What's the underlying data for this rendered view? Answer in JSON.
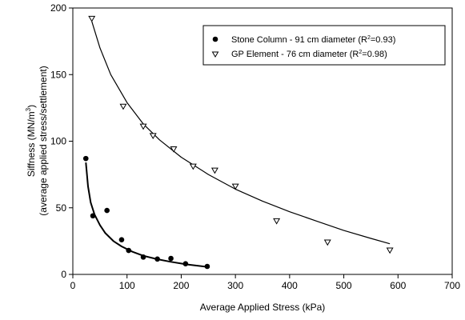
{
  "chart_data": {
    "type": "scatter",
    "xlabel": "Average Applied Stress (kPa)",
    "ylabel_line1_prefix": "Siffness (MN/m",
    "ylabel_line1_sup": "3",
    "ylabel_line1_suffix": ")",
    "ylabel_line2": "(average applied stress/settlement)",
    "xlim": [
      0,
      700
    ],
    "ylim": [
      0,
      200
    ],
    "xticks": [
      0,
      100,
      200,
      300,
      400,
      500,
      600,
      700
    ],
    "yticks": [
      0,
      50,
      100,
      150,
      200
    ],
    "xtick_labels": [
      "0",
      "100",
      "200",
      "300",
      "400",
      "500",
      "600",
      "700"
    ],
    "ytick_labels": [
      "0",
      "50",
      "100",
      "150",
      "200"
    ],
    "grid": false,
    "legend_position": "top-right",
    "series": [
      {
        "name": "Stone Column - 91 cm diameter",
        "r2_prefix": "(R",
        "r2_sup": "2",
        "r2_suffix": "=0.93)",
        "marker": "filled-circle",
        "color": "#000000",
        "points": [
          {
            "x": 24,
            "y": 87
          },
          {
            "x": 37,
            "y": 44
          },
          {
            "x": 63,
            "y": 48
          },
          {
            "x": 90,
            "y": 26
          },
          {
            "x": 103,
            "y": 18
          },
          {
            "x": 130,
            "y": 13
          },
          {
            "x": 156,
            "y": 11.5
          },
          {
            "x": 181,
            "y": 12
          },
          {
            "x": 208,
            "y": 8
          },
          {
            "x": 248,
            "y": 6
          }
        ],
        "fit": [
          {
            "x": 24,
            "y": 84
          },
          {
            "x": 28,
            "y": 66
          },
          {
            "x": 33,
            "y": 54
          },
          {
            "x": 40,
            "y": 45
          },
          {
            "x": 50,
            "y": 37
          },
          {
            "x": 60,
            "y": 31
          },
          {
            "x": 75,
            "y": 25
          },
          {
            "x": 90,
            "y": 21
          },
          {
            "x": 110,
            "y": 17
          },
          {
            "x": 130,
            "y": 14
          },
          {
            "x": 155,
            "y": 11.5
          },
          {
            "x": 180,
            "y": 9.5
          },
          {
            "x": 210,
            "y": 7.5
          },
          {
            "x": 250,
            "y": 5.5
          }
        ]
      },
      {
        "name": "GP Element - 76 cm diameter",
        "r2_prefix": "(R",
        "r2_sup": "2",
        "r2_suffix": "=0.98)",
        "marker": "open-triangle-down",
        "color": "#000000",
        "points": [
          {
            "x": 35,
            "y": 192
          },
          {
            "x": 93,
            "y": 126
          },
          {
            "x": 130,
            "y": 111
          },
          {
            "x": 148,
            "y": 104
          },
          {
            "x": 186,
            "y": 94
          },
          {
            "x": 222,
            "y": 81
          },
          {
            "x": 262,
            "y": 78
          },
          {
            "x": 300,
            "y": 66
          },
          {
            "x": 376,
            "y": 40
          },
          {
            "x": 470,
            "y": 24
          },
          {
            "x": 585,
            "y": 18
          }
        ],
        "fit": [
          {
            "x": 35,
            "y": 190
          },
          {
            "x": 50,
            "y": 170
          },
          {
            "x": 70,
            "y": 150
          },
          {
            "x": 100,
            "y": 129
          },
          {
            "x": 130,
            "y": 113
          },
          {
            "x": 160,
            "y": 101
          },
          {
            "x": 200,
            "y": 88
          },
          {
            "x": 250,
            "y": 75
          },
          {
            "x": 300,
            "y": 64
          },
          {
            "x": 350,
            "y": 55
          },
          {
            "x": 400,
            "y": 47
          },
          {
            "x": 450,
            "y": 40
          },
          {
            "x": 500,
            "y": 33
          },
          {
            "x": 550,
            "y": 27
          },
          {
            "x": 585,
            "y": 23
          }
        ]
      }
    ]
  }
}
